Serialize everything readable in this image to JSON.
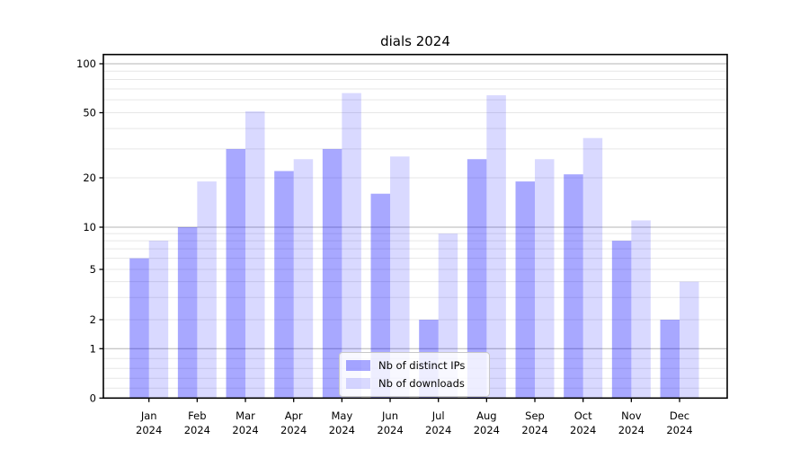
{
  "title": "dials 2024",
  "chart_data": {
    "type": "bar",
    "title": "dials 2024",
    "categories": [
      "Jan",
      "Feb",
      "Mar",
      "Apr",
      "May",
      "Jun",
      "Jul",
      "Aug",
      "Sep",
      "Oct",
      "Nov",
      "Dec"
    ],
    "category_year": "2024",
    "series": [
      {
        "name": "Nb of distinct IPs",
        "color": "rgba(0,0,255,0.34)",
        "values": [
          6,
          10,
          30,
          22,
          30,
          16,
          2,
          26,
          19,
          21,
          8,
          2
        ]
      },
      {
        "name": "Nb of downloads",
        "color": "rgba(0,0,255,0.15)",
        "values": [
          8,
          19,
          51,
          26,
          66,
          27,
          9,
          64,
          26,
          35,
          11,
          4
        ]
      }
    ],
    "xlabel": "",
    "ylabel": "",
    "yticks": [
      0,
      1,
      2,
      5,
      10,
      20,
      50,
      100
    ],
    "ylim": [
      0,
      114
    ],
    "yscale": "log-above-1-linear-below-1",
    "grid": {
      "major_values": [
        1,
        10,
        100
      ],
      "minor_values": [
        0.2,
        0.4,
        0.6,
        0.8,
        2,
        3,
        4,
        5,
        6,
        7,
        8,
        9,
        20,
        30,
        40,
        50,
        60,
        70,
        80,
        90
      ]
    },
    "legend_position": "inside-bottom-center"
  },
  "colors": {
    "bar_dark": "rgba(0,0,255,0.34)",
    "bar_light": "rgba(0,0,255,0.15)",
    "grid_major": "#b4b4b4",
    "grid_minor": "#e7e7e7",
    "axis": "#000000",
    "text": "#000000",
    "legend_border": "#c9c9c9"
  }
}
